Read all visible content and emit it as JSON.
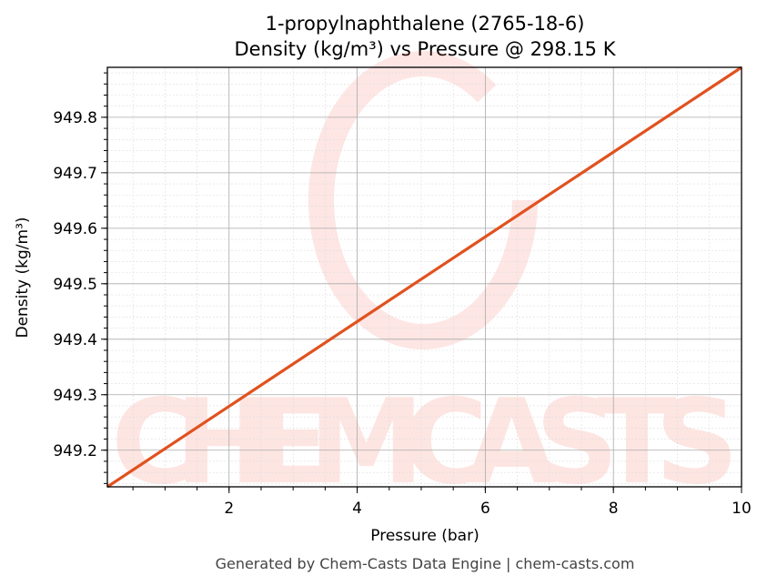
{
  "chart_data": {
    "type": "line",
    "title": "1-propylnaphthalene (2765-18-6)",
    "subtitle": "Density (kg/m³) vs Pressure @ 298.15 K",
    "xlabel": "Pressure (bar)",
    "ylabel": "Density (kg/m³)",
    "xlim": [
      0.1,
      10
    ],
    "ylim": [
      949.134,
      949.89
    ],
    "xticks": [
      2,
      4,
      6,
      8,
      10
    ],
    "yticks": [
      949.2,
      949.3,
      949.4,
      949.5,
      949.6,
      949.7,
      949.8
    ],
    "grid": true,
    "series": [
      {
        "x": [
          0.1,
          10
        ],
        "y": [
          949.134,
          949.89
        ],
        "color": "#e0521f"
      }
    ]
  },
  "watermark": "CHEMCASTS",
  "footer": "Generated by Chem-Casts Data Engine | chem-casts.com"
}
